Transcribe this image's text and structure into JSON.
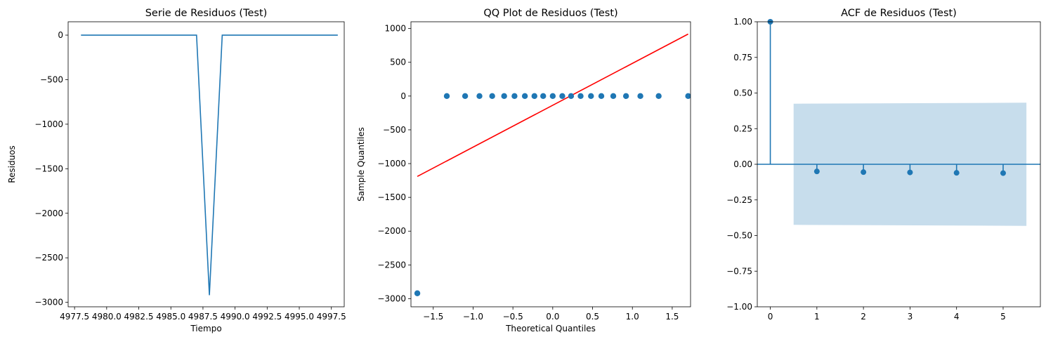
{
  "chart_data": [
    {
      "type": "line",
      "title": "Serie de Residuos (Test)",
      "xlabel": "Tiempo",
      "ylabel": "Residuos",
      "color": "#1f77b4",
      "xlim": [
        4977.0,
        4998.5
      ],
      "ylim": [
        -3050,
        150
      ],
      "x_ticks": [
        4977.5,
        4980.0,
        4982.5,
        4985.0,
        4987.5,
        4990.0,
        4992.5,
        4995.0,
        4997.5
      ],
      "x_tick_labels": [
        "4977.5",
        "4980.0",
        "4982.5",
        "4985.0",
        "4987.5",
        "4990.0",
        "4992.5",
        "4995.0",
        "4997.5"
      ],
      "y_ticks": [
        0,
        -500,
        -1000,
        -1500,
        -2000,
        -2500,
        -3000
      ],
      "y_tick_labels": [
        "0",
        "−500",
        "−1000",
        "−1500",
        "−2000",
        "−2500",
        "−3000"
      ],
      "x": [
        4978,
        4979,
        4980,
        4981,
        4982,
        4983,
        4984,
        4985,
        4986,
        4987,
        4988,
        4989,
        4990,
        4991,
        4992,
        4993,
        4994,
        4995,
        4996,
        4997,
        4998
      ],
      "y": [
        0,
        0,
        0,
        0,
        0,
        0,
        0,
        0,
        0,
        0,
        -2920,
        0,
        0,
        0,
        0,
        0,
        0,
        0,
        0,
        0,
        0
      ]
    },
    {
      "type": "scatter",
      "title": "QQ Plot de Residuos (Test)",
      "xlabel": "Theoretical Quantiles",
      "ylabel": "Sample Quantiles",
      "point_color": "#1f77b4",
      "line_color": "#ff0000",
      "xlim": [
        -1.78,
        1.73
      ],
      "ylim": [
        -3120,
        1100
      ],
      "x_ticks": [
        -1.5,
        -1.0,
        -0.5,
        0.0,
        0.5,
        1.0,
        1.5
      ],
      "x_tick_labels": [
        "−1.5",
        "−1.0",
        "−0.5",
        "0.0",
        "0.5",
        "1.0",
        "1.5"
      ],
      "y_ticks": [
        1000,
        500,
        0,
        -500,
        -1000,
        -1500,
        -2000,
        -2500,
        -3000
      ],
      "y_tick_labels": [
        "1000",
        "500",
        "0",
        "−500",
        "−1000",
        "−1500",
        "−2000",
        "−2500",
        "−3000"
      ],
      "points_x": [
        -1.7,
        -1.33,
        -1.1,
        -0.92,
        -0.76,
        -0.61,
        -0.48,
        -0.35,
        -0.23,
        -0.12,
        0.0,
        0.12,
        0.23,
        0.35,
        0.48,
        0.61,
        0.76,
        0.92,
        1.1,
        1.33,
        1.7
      ],
      "points_y": [
        -2920,
        0,
        0,
        0,
        0,
        0,
        0,
        0,
        0,
        0,
        0,
        0,
        0,
        0,
        0,
        0,
        0,
        0,
        0,
        0,
        0
      ],
      "reference_line": {
        "x": [
          -1.7,
          1.7
        ],
        "y": [
          -1190,
          918
        ]
      }
    },
    {
      "type": "stem",
      "title": "ACF de Residuos (Test)",
      "color": "#1f77b4",
      "band_color": "#1f77b4",
      "xlim": [
        -0.28,
        5.8
      ],
      "ylim": [
        -1.0,
        1.0
      ],
      "x_ticks": [
        0,
        1,
        2,
        3,
        4,
        5
      ],
      "x_tick_labels": [
        "0",
        "1",
        "2",
        "3",
        "4",
        "5"
      ],
      "y_ticks": [
        1.0,
        0.75,
        0.5,
        0.25,
        0.0,
        -0.25,
        -0.5,
        -0.75,
        -1.0
      ],
      "y_tick_labels": [
        "1.00",
        "0.75",
        "0.50",
        "0.25",
        "0.00",
        "−0.25",
        "−0.50",
        "−0.75",
        "−1.00"
      ],
      "lags": [
        0,
        1,
        2,
        3,
        4,
        5
      ],
      "acf": [
        1.0,
        -0.05,
        -0.055,
        -0.057,
        -0.06,
        -0.062
      ],
      "confidence_band": {
        "x": [
          0.5,
          5.5
        ],
        "upper": [
          0.425,
          0.432
        ],
        "lower": [
          -0.425,
          -0.432
        ]
      }
    }
  ]
}
